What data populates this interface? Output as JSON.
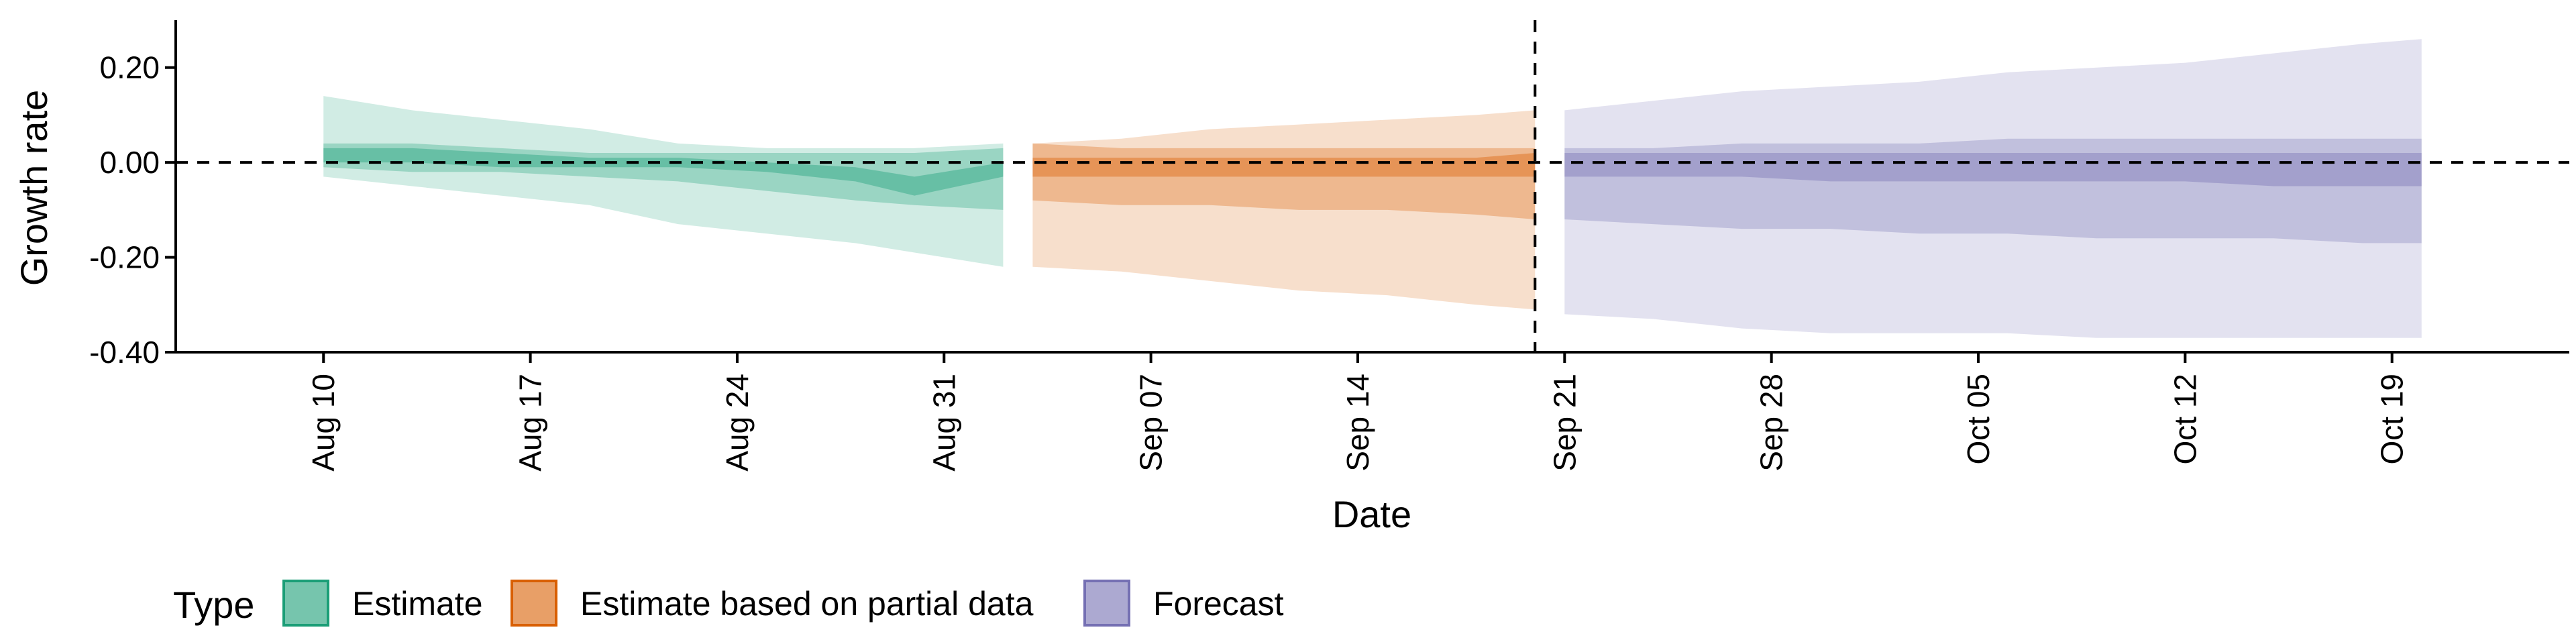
{
  "chart_data": {
    "type": "area",
    "xlabel": "Date",
    "ylabel": "Growth rate",
    "ylim": [
      -0.4,
      0.3
    ],
    "yticks": [
      0.2,
      0.0,
      -0.2,
      -0.4
    ],
    "ytick_labels": [
      "0.20",
      "0.00",
      "-0.20",
      "-0.40"
    ],
    "xlim": [
      "2020-08-05",
      "2020-10-25"
    ],
    "xticks": [
      "2020-08-10",
      "2020-08-17",
      "2020-08-24",
      "2020-08-31",
      "2020-09-07",
      "2020-09-14",
      "2020-09-21",
      "2020-09-28",
      "2020-10-05",
      "2020-10-12",
      "2020-10-19"
    ],
    "xtick_labels": [
      "Aug 10",
      "Aug 17",
      "Aug 24",
      "Aug 31",
      "Sep 07",
      "Sep 14",
      "Sep 21",
      "Sep 28",
      "Oct 05",
      "Oct 12",
      "Oct 19"
    ],
    "hline_y": 0.0,
    "vline_x": "2020-09-20",
    "grid": false,
    "legend": {
      "title": "Type",
      "position": "bottom-left",
      "entries": [
        "Estimate",
        "Estimate based on partial data",
        "Forecast"
      ]
    },
    "series": [
      {
        "name": "Estimate",
        "color": "#1b9e77",
        "x": [
          "2020-08-10",
          "2020-08-13",
          "2020-08-16",
          "2020-08-19",
          "2020-08-22",
          "2020-08-25",
          "2020-08-28",
          "2020-08-30",
          "2020-09-02"
        ],
        "lower90": [
          -0.03,
          -0.05,
          -0.07,
          -0.09,
          -0.13,
          -0.15,
          -0.17,
          -0.19,
          -0.22
        ],
        "upper90": [
          0.14,
          0.11,
          0.09,
          0.07,
          0.04,
          0.03,
          0.03,
          0.03,
          0.04
        ],
        "lower50": [
          -0.01,
          -0.02,
          -0.02,
          -0.03,
          -0.04,
          -0.06,
          -0.08,
          -0.09,
          -0.1
        ],
        "upper50": [
          0.04,
          0.04,
          0.03,
          0.02,
          0.02,
          0.02,
          0.02,
          0.02,
          0.03
        ],
        "lower20": [
          0.0,
          0.0,
          -0.01,
          -0.01,
          -0.01,
          -0.02,
          -0.04,
          -0.07,
          -0.03
        ],
        "upper20": [
          0.03,
          0.03,
          0.02,
          0.01,
          0.01,
          0.0,
          -0.01,
          -0.03,
          0.0
        ]
      },
      {
        "name": "Estimate based on partial data",
        "color": "#d95f02",
        "x": [
          "2020-09-03",
          "2020-09-06",
          "2020-09-09",
          "2020-09-12",
          "2020-09-15",
          "2020-09-18",
          "2020-09-20"
        ],
        "lower90": [
          -0.22,
          -0.23,
          -0.25,
          -0.27,
          -0.28,
          -0.3,
          -0.31
        ],
        "upper90": [
          0.04,
          0.05,
          0.07,
          0.08,
          0.09,
          0.1,
          0.11
        ],
        "lower50": [
          -0.08,
          -0.09,
          -0.09,
          -0.1,
          -0.1,
          -0.11,
          -0.12
        ],
        "upper50": [
          0.04,
          0.03,
          0.03,
          0.03,
          0.03,
          0.03,
          0.03
        ],
        "lower20": [
          -0.03,
          -0.03,
          -0.03,
          -0.03,
          -0.03,
          -0.03,
          -0.03
        ],
        "upper20": [
          0.01,
          0.01,
          0.01,
          0.01,
          0.01,
          0.01,
          0.02
        ]
      },
      {
        "name": "Forecast",
        "color": "#7570b3",
        "x": [
          "2020-09-21",
          "2020-09-24",
          "2020-09-27",
          "2020-09-30",
          "2020-10-03",
          "2020-10-06",
          "2020-10-09",
          "2020-10-12",
          "2020-10-15",
          "2020-10-18",
          "2020-10-20"
        ],
        "lower90": [
          -0.32,
          -0.33,
          -0.35,
          -0.36,
          -0.36,
          -0.36,
          -0.37,
          -0.37,
          -0.37,
          -0.37,
          -0.37
        ],
        "upper90": [
          0.11,
          0.13,
          0.15,
          0.16,
          0.17,
          0.19,
          0.2,
          0.21,
          0.23,
          0.25,
          0.26
        ],
        "lower50": [
          -0.12,
          -0.13,
          -0.14,
          -0.14,
          -0.15,
          -0.15,
          -0.16,
          -0.16,
          -0.16,
          -0.17,
          -0.17
        ],
        "upper50": [
          0.03,
          0.03,
          0.04,
          0.04,
          0.04,
          0.05,
          0.05,
          0.05,
          0.05,
          0.05,
          0.05
        ],
        "lower20": [
          -0.03,
          -0.03,
          -0.03,
          -0.04,
          -0.04,
          -0.04,
          -0.04,
          -0.04,
          -0.05,
          -0.05,
          -0.05
        ],
        "upper20": [
          0.02,
          0.02,
          0.02,
          0.02,
          0.02,
          0.02,
          0.02,
          0.02,
          0.02,
          0.02,
          0.02
        ]
      }
    ]
  }
}
